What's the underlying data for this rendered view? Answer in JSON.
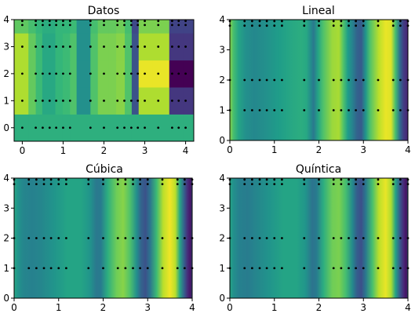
{
  "chart_data": [
    {
      "type": "heatmap",
      "title": "Datos",
      "xlim": [
        -0.2,
        4.2
      ],
      "ylim": [
        -0.5,
        4.0
      ],
      "xticks": [
        0,
        1,
        2,
        3,
        4
      ],
      "yticks": [
        0,
        1,
        2,
        3,
        4
      ],
      "x_edges": [
        -0.2,
        0.15,
        0.33,
        0.49,
        0.65,
        0.81,
        0.99,
        1.17,
        1.33,
        1.67,
        1.85,
        2.12,
        2.3,
        2.51,
        2.68,
        2.85,
        3.2,
        3.6,
        3.95,
        4.2
      ],
      "y_edges": [
        -0.5,
        0.5,
        1.5,
        2.5,
        3.5,
        4.0
      ],
      "rows": [
        [
          0.63,
          0.63,
          0.63,
          0.63,
          0.63,
          0.63,
          0.63,
          0.63,
          0.63,
          0.63,
          0.63,
          0.63,
          0.63,
          0.63,
          0.63,
          0.63,
          0.63,
          0.63,
          0.63
        ],
        [
          0.88,
          0.76,
          0.68,
          0.6,
          0.6,
          0.66,
          0.68,
          0.72,
          0.5,
          0.72,
          0.8,
          0.8,
          0.82,
          0.72,
          0.25,
          0.88,
          0.88,
          0.16,
          0.16
        ],
        [
          0.88,
          0.76,
          0.68,
          0.6,
          0.6,
          0.66,
          0.68,
          0.72,
          0.5,
          0.72,
          0.8,
          0.8,
          0.82,
          0.72,
          0.25,
          0.97,
          0.97,
          0.0,
          0.0
        ],
        [
          0.88,
          0.76,
          0.68,
          0.6,
          0.6,
          0.66,
          0.68,
          0.72,
          0.5,
          0.72,
          0.8,
          0.8,
          0.82,
          0.72,
          0.25,
          0.88,
          0.88,
          0.16,
          0.16
        ],
        [
          0.75,
          0.7,
          0.66,
          0.62,
          0.62,
          0.66,
          0.66,
          0.68,
          0.5,
          0.7,
          0.76,
          0.76,
          0.78,
          0.7,
          0.22,
          0.8,
          0.8,
          0.2,
          0.2
        ]
      ],
      "points_x": [
        0.0,
        0.33,
        0.5,
        0.67,
        0.83,
        1.0,
        1.17,
        1.67,
        2.0,
        2.33,
        2.5,
        2.67,
        2.83,
        3.0,
        3.33,
        3.67,
        3.83,
        4.0
      ],
      "points_y": [
        0,
        1,
        2,
        3,
        3.8,
        3.95
      ]
    },
    {
      "type": "heatmap",
      "title": "Lineal",
      "xlim": [
        0,
        4.0
      ],
      "ylim": [
        0,
        4.0
      ],
      "xticks": [
        0,
        1,
        2,
        3,
        4
      ],
      "yticks": [
        0,
        1,
        2,
        3,
        4
      ],
      "profile": [
        [
          0,
          0.82
        ],
        [
          0.08,
          0.7
        ],
        [
          0.2,
          0.58
        ],
        [
          0.35,
          0.5
        ],
        [
          0.55,
          0.47
        ],
        [
          0.8,
          0.5
        ],
        [
          1.1,
          0.55
        ],
        [
          1.4,
          0.6
        ],
        [
          1.6,
          0.62
        ],
        [
          1.72,
          0.6
        ],
        [
          1.82,
          0.48
        ],
        [
          1.88,
          0.4
        ],
        [
          1.98,
          0.58
        ],
        [
          2.1,
          0.72
        ],
        [
          2.3,
          0.85
        ],
        [
          2.45,
          0.87
        ],
        [
          2.55,
          0.72
        ],
        [
          2.65,
          0.55
        ],
        [
          2.75,
          0.45
        ],
        [
          2.85,
          0.32
        ],
        [
          2.95,
          0.28
        ],
        [
          3.05,
          0.52
        ],
        [
          3.15,
          0.72
        ],
        [
          3.35,
          0.9
        ],
        [
          3.5,
          0.97
        ],
        [
          3.62,
          0.95
        ],
        [
          3.72,
          0.7
        ],
        [
          3.82,
          0.35
        ],
        [
          3.9,
          0.18
        ],
        [
          4.0,
          0.1
        ]
      ],
      "points_x": [
        0.0,
        0.33,
        0.5,
        0.67,
        0.83,
        1.0,
        1.17,
        1.67,
        2.0,
        2.33,
        2.5,
        2.67,
        2.83,
        3.0,
        3.33,
        3.67,
        3.83,
        4.0
      ],
      "points_y": [
        1,
        2,
        3.8,
        3.95
      ]
    },
    {
      "type": "heatmap",
      "title": "Cúbica",
      "xlim": [
        0,
        4.0
      ],
      "ylim": [
        0,
        4.0
      ],
      "xticks": [
        0,
        1,
        2,
        3,
        4
      ],
      "yticks": [
        0,
        1,
        2,
        3,
        4
      ],
      "profile": [
        [
          0,
          0.6
        ],
        [
          0.08,
          0.52
        ],
        [
          0.2,
          0.46
        ],
        [
          0.4,
          0.44
        ],
        [
          0.6,
          0.46
        ],
        [
          0.9,
          0.52
        ],
        [
          1.2,
          0.58
        ],
        [
          1.5,
          0.58
        ],
        [
          1.7,
          0.52
        ],
        [
          1.85,
          0.4
        ],
        [
          1.95,
          0.42
        ],
        [
          2.1,
          0.62
        ],
        [
          2.3,
          0.78
        ],
        [
          2.45,
          0.82
        ],
        [
          2.6,
          0.72
        ],
        [
          2.75,
          0.5
        ],
        [
          2.85,
          0.32
        ],
        [
          2.95,
          0.25
        ],
        [
          3.05,
          0.38
        ],
        [
          3.2,
          0.68
        ],
        [
          3.35,
          0.9
        ],
        [
          3.5,
          0.98
        ],
        [
          3.62,
          0.9
        ],
        [
          3.72,
          0.6
        ],
        [
          3.82,
          0.3
        ],
        [
          3.9,
          0.12
        ],
        [
          3.97,
          0.05
        ],
        [
          4.0,
          0.4
        ]
      ],
      "points_x": [
        0.0,
        0.33,
        0.5,
        0.67,
        0.83,
        1.0,
        1.17,
        1.67,
        2.0,
        2.33,
        2.5,
        2.67,
        2.83,
        3.0,
        3.33,
        3.67,
        3.83,
        4.0
      ],
      "points_y": [
        1,
        2,
        3.8,
        3.95
      ]
    },
    {
      "type": "heatmap",
      "title": "Quíntica",
      "xlim": [
        0,
        4.0
      ],
      "ylim": [
        0,
        4.0
      ],
      "xticks": [
        0,
        1,
        2,
        3,
        4
      ],
      "yticks": [
        0,
        1,
        2,
        3,
        4
      ],
      "profile": [
        [
          0,
          0.58
        ],
        [
          0.08,
          0.5
        ],
        [
          0.2,
          0.44
        ],
        [
          0.4,
          0.42
        ],
        [
          0.6,
          0.46
        ],
        [
          0.9,
          0.52
        ],
        [
          1.2,
          0.58
        ],
        [
          1.5,
          0.58
        ],
        [
          1.7,
          0.52
        ],
        [
          1.85,
          0.38
        ],
        [
          1.95,
          0.42
        ],
        [
          2.1,
          0.62
        ],
        [
          2.3,
          0.78
        ],
        [
          2.45,
          0.8
        ],
        [
          2.6,
          0.7
        ],
        [
          2.75,
          0.48
        ],
        [
          2.85,
          0.3
        ],
        [
          2.95,
          0.24
        ],
        [
          3.05,
          0.4
        ],
        [
          3.2,
          0.7
        ],
        [
          3.35,
          0.9
        ],
        [
          3.5,
          0.97
        ],
        [
          3.62,
          0.88
        ],
        [
          3.72,
          0.58
        ],
        [
          3.82,
          0.28
        ],
        [
          3.9,
          0.12
        ],
        [
          3.97,
          0.04
        ],
        [
          4.0,
          0.45
        ]
      ],
      "points_x": [
        0.0,
        0.33,
        0.5,
        0.67,
        0.83,
        1.0,
        1.17,
        1.67,
        2.0,
        2.33,
        2.5,
        2.67,
        2.83,
        3.0,
        3.33,
        3.67,
        3.83,
        4.0
      ],
      "points_y": [
        1,
        2,
        3.8,
        3.95
      ]
    }
  ]
}
